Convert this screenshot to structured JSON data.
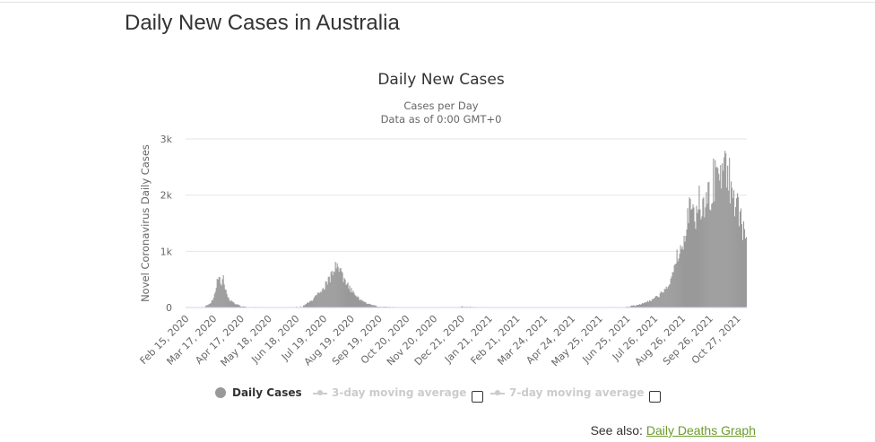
{
  "page": {
    "heading": "Daily New Cases in Australia"
  },
  "legend": {
    "daily_cases": "Daily Cases",
    "avg3": "3-day moving average",
    "avg7": "7-day moving average",
    "avg3_checked": false,
    "avg7_checked": false
  },
  "see_also": {
    "prefix": "See also:",
    "link_label": "Daily Deaths Graph"
  },
  "colors": {
    "bars": "#999999",
    "inactive_legend": "#cccccc",
    "link": "#6b9b2a"
  },
  "chart_data": {
    "type": "bar",
    "title": "Daily New Cases",
    "subtitle_lines": [
      "Cases per Day",
      "Data as of 0:00 GMT+0"
    ],
    "ylabel": "Novel Coronavirus Daily Cases",
    "ylim": [
      0,
      3000
    ],
    "yticks": [
      {
        "value": 0,
        "label": "0"
      },
      {
        "value": 1000,
        "label": "1k"
      },
      {
        "value": 2000,
        "label": "2k"
      },
      {
        "value": 3000,
        "label": "3k"
      }
    ],
    "x_ticks": [
      "Feb 15, 2020",
      "Mar 17, 2020",
      "Apr 17, 2020",
      "May 18, 2020",
      "Jun 18, 2020",
      "Jul 19, 2020",
      "Aug 19, 2020",
      "Sep 19, 2020",
      "Oct 20, 2020",
      "Nov 20, 2020",
      "Dec 21, 2020",
      "Jan 21, 2021",
      "Feb 21, 2021",
      "Mar 24, 2021",
      "Apr 24, 2021",
      "May 25, 2021",
      "Jun 25, 2021",
      "Jul 26, 2021",
      "Aug 26, 2021",
      "Sep 26, 2021",
      "Oct 27, 2021"
    ],
    "grid": true,
    "legend_position": "bottom-center",
    "series": [
      {
        "name": "Daily Cases",
        "x_start": "Feb 15, 2020",
        "x_end": "Nov 6, 2021",
        "points": [
          [
            "Feb 15, 2020",
            0
          ],
          [
            "Mar 5, 2020",
            10
          ],
          [
            "Mar 12, 2020",
            60
          ],
          [
            "Mar 17, 2020",
            150
          ],
          [
            "Mar 20, 2020",
            380
          ],
          [
            "Mar 22, 2020",
            530
          ],
          [
            "Mar 25, 2020",
            450
          ],
          [
            "Mar 28, 2020",
            520
          ],
          [
            "Mar 31, 2020",
            280
          ],
          [
            "Apr 4, 2020",
            140
          ],
          [
            "Apr 10, 2020",
            70
          ],
          [
            "Apr 17, 2020",
            25
          ],
          [
            "Apr 28, 2020",
            12
          ],
          [
            "May 18, 2020",
            8
          ],
          [
            "Jun 10, 2020",
            8
          ],
          [
            "Jun 25, 2020",
            25
          ],
          [
            "Jul 5, 2020",
            120
          ],
          [
            "Jul 12, 2020",
            230
          ],
          [
            "Jul 19, 2020",
            380
          ],
          [
            "Jul 26, 2020",
            520
          ],
          [
            "Aug 1, 2020",
            690
          ],
          [
            "Aug 5, 2020",
            720
          ],
          [
            "Aug 10, 2020",
            480
          ],
          [
            "Aug 19, 2020",
            300
          ],
          [
            "Aug 26, 2020",
            180
          ],
          [
            "Sep 3, 2020",
            90
          ],
          [
            "Sep 12, 2020",
            45
          ],
          [
            "Sep 19, 2020",
            20
          ],
          [
            "Oct 5, 2020",
            12
          ],
          [
            "Oct 20, 2020",
            8
          ],
          [
            "Nov 20, 2020",
            8
          ],
          [
            "Dec 18, 2020",
            12
          ],
          [
            "Dec 21, 2020",
            25
          ],
          [
            "Dec 28, 2020",
            20
          ],
          [
            "Jan 6, 2021",
            15
          ],
          [
            "Jan 21, 2021",
            8
          ],
          [
            "Feb 21, 2021",
            8
          ],
          [
            "Mar 24, 2021",
            8
          ],
          [
            "Apr 24, 2021",
            10
          ],
          [
            "May 25, 2021",
            8
          ],
          [
            "Jun 20, 2021",
            10
          ],
          [
            "Jun 25, 2021",
            25
          ],
          [
            "Jul 5, 2021",
            35
          ],
          [
            "Jul 15, 2021",
            80
          ],
          [
            "Jul 26, 2021",
            160
          ],
          [
            "Aug 5, 2021",
            280
          ],
          [
            "Aug 12, 2021",
            450
          ],
          [
            "Aug 19, 2021",
            850
          ],
          [
            "Aug 26, 2021",
            1150
          ],
          [
            "Sep 1, 2021",
            1500
          ],
          [
            "Sep 5, 2021",
            1850
          ],
          [
            "Sep 10, 2021",
            1700
          ],
          [
            "Sep 15, 2021",
            1900
          ],
          [
            "Sep 20, 2021",
            1780
          ],
          [
            "Sep 26, 2021",
            2050
          ],
          [
            "Oct 1, 2021",
            2300
          ],
          [
            "Oct 6, 2021",
            2450
          ],
          [
            "Oct 11, 2021",
            2600
          ],
          [
            "Oct 16, 2021",
            2400
          ],
          [
            "Oct 21, 2021",
            2150
          ],
          [
            "Oct 27, 2021",
            1800
          ],
          [
            "Nov 1, 2021",
            1450
          ],
          [
            "Nov 6, 2021",
            1250
          ]
        ]
      }
    ]
  }
}
